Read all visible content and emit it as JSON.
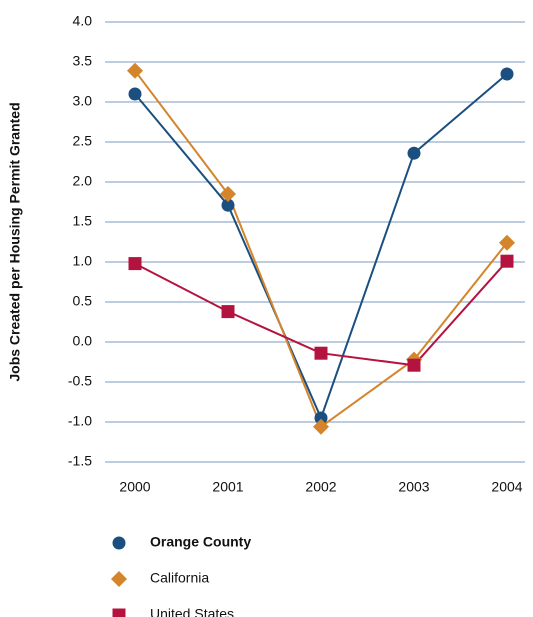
{
  "chart_data": {
    "type": "line",
    "y_label": "Jobs Created per Housing Permit Granted",
    "categories": [
      "2000",
      "2001",
      "2002",
      "2003",
      "2004"
    ],
    "series": [
      {
        "name": "Orange County",
        "color": "#1b4f80",
        "marker": "circle",
        "values": [
          3.1,
          1.71,
          -0.95,
          2.36,
          3.35
        ]
      },
      {
        "name": "California",
        "color": "#d4852b",
        "marker": "diamond",
        "values": [
          3.39,
          1.85,
          -1.06,
          -0.22,
          1.24
        ]
      },
      {
        "name": "United States",
        "color": "#b5133f",
        "marker": "square",
        "values": [
          0.98,
          0.38,
          -0.14,
          -0.29,
          1.01
        ]
      }
    ],
    "ylim": [
      -1.5,
      4.0
    ],
    "yticks": [
      {
        "value": 4.0,
        "label": "4.0"
      },
      3.5,
      {
        "value": 3.0,
        "label": "3.0"
      },
      2.5,
      {
        "value": 2.0,
        "label": "2.0"
      },
      1.5,
      {
        "value": 1.0,
        "label": "1.0"
      },
      0.5,
      {
        "value": 0.0,
        "label": "0.0"
      },
      -0.5,
      {
        "value": -1.0,
        "label": "-1.0"
      },
      -1.5
    ],
    "grid": true
  }
}
